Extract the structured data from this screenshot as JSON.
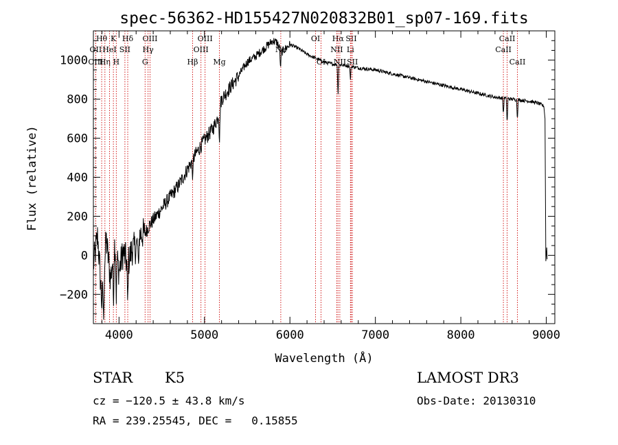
{
  "chart_data": {
    "type": "line",
    "title": "spec-56362-HD155427N020832B01_sp07-169.fits",
    "xlabel": "Wavelength (Å)",
    "ylabel": "Flux (relative)",
    "xlim": [
      3700,
      9100
    ],
    "ylim": [
      -350,
      1150
    ],
    "x_ticks": [
      4000,
      5000,
      6000,
      7000,
      8000,
      9000
    ],
    "x_tick_labels": [
      "4000",
      "5000",
      "6000",
      "7000",
      "8000",
      "9000"
    ],
    "y_ticks": [
      -200,
      0,
      200,
      400,
      600,
      800,
      1000
    ],
    "y_tick_labels": [
      "−200",
      "0",
      "200",
      "400",
      "600",
      "800",
      "1000"
    ],
    "series": [
      {
        "name": "flux",
        "anchors": [
          [
            3700,
            -50
          ],
          [
            3750,
            100
          ],
          [
            3800,
            -250
          ],
          [
            3850,
            80
          ],
          [
            3900,
            -120
          ],
          [
            3950,
            60
          ],
          [
            4000,
            -80
          ],
          [
            4050,
            20
          ],
          [
            4100,
            -50
          ],
          [
            4150,
            30
          ],
          [
            4200,
            40
          ],
          [
            4250,
            110
          ],
          [
            4300,
            110
          ],
          [
            4350,
            150
          ],
          [
            4400,
            180
          ],
          [
            4500,
            240
          ],
          [
            4600,
            300
          ],
          [
            4700,
            360
          ],
          [
            4800,
            440
          ],
          [
            4900,
            520
          ],
          [
            5000,
            590
          ],
          [
            5100,
            650
          ],
          [
            5150,
            700
          ],
          [
            5200,
            800
          ],
          [
            5300,
            860
          ],
          [
            5400,
            920
          ],
          [
            5500,
            990
          ],
          [
            5600,
            1020
          ],
          [
            5700,
            1060
          ],
          [
            5800,
            1100
          ],
          [
            5850,
            1090
          ],
          [
            5900,
            1040
          ],
          [
            6000,
            1080
          ],
          [
            6100,
            1060
          ],
          [
            6200,
            1030
          ],
          [
            6300,
            1010
          ],
          [
            6400,
            990
          ],
          [
            6500,
            980
          ],
          [
            6600,
            975
          ],
          [
            6700,
            970
          ],
          [
            6800,
            960
          ],
          [
            7000,
            950
          ],
          [
            7200,
            930
          ],
          [
            7400,
            910
          ],
          [
            7600,
            890
          ],
          [
            7800,
            870
          ],
          [
            8000,
            850
          ],
          [
            8200,
            830
          ],
          [
            8400,
            810
          ],
          [
            8600,
            800
          ],
          [
            8800,
            790
          ],
          [
            8900,
            780
          ],
          [
            8970,
            765
          ]
        ],
        "absorption": [
          [
            3820,
            -330
          ],
          [
            3935,
            -280
          ],
          [
            3968,
            -250
          ],
          [
            4101,
            -250
          ],
          [
            4227,
            -60
          ],
          [
            4861,
            380
          ],
          [
            5175,
            560
          ],
          [
            5890,
            950
          ],
          [
            6563,
            810
          ],
          [
            6708,
            900
          ],
          [
            8498,
            720
          ],
          [
            8542,
            670
          ],
          [
            8662,
            690
          ],
          [
            9000,
            -30
          ],
          [
            9030,
            0
          ]
        ]
      }
    ],
    "spectral_lines": [
      {
        "label": "Hθ",
        "wavelength": 3797,
        "row": 1
      },
      {
        "label": "OII",
        "wavelength": 3727,
        "row": 2
      },
      {
        "label": "OIII",
        "wavelength": 3727,
        "row": 3
      },
      {
        "label": "Hη",
        "wavelength": 3835,
        "row": 3
      },
      {
        "label": "K",
        "wavelength": 3934,
        "row": 1
      },
      {
        "label": "HeI",
        "wavelength": 3889,
        "row": 2
      },
      {
        "label": "H",
        "wavelength": 3968,
        "row": 3
      },
      {
        "label": "Hδ",
        "wavelength": 4102,
        "row": 1
      },
      {
        "label": "SII",
        "wavelength": 4069,
        "row": 2
      },
      {
        "label": "OIII",
        "wavelength": 4363,
        "row": 1
      },
      {
        "label": "Hγ",
        "wavelength": 4340,
        "row": 2
      },
      {
        "label": "G",
        "wavelength": 4305,
        "row": 3
      },
      {
        "label": "Hβ",
        "wavelength": 4861,
        "row": 3
      },
      {
        "label": "OIII",
        "wavelength": 5007,
        "row": 1
      },
      {
        "label": "OIII",
        "wavelength": 4959,
        "row": 2
      },
      {
        "label": "Mg",
        "wavelength": 5175,
        "row": 3
      },
      {
        "label": "Na",
        "wavelength": 5893,
        "row": 2
      },
      {
        "label": "OI",
        "wavelength": 6300,
        "row": 1
      },
      {
        "label": "OI",
        "wavelength": 6364,
        "row": 3
      },
      {
        "label": "Hα",
        "wavelength": 6563,
        "row": 1
      },
      {
        "label": "SII",
        "wavelength": 6717,
        "row": 1
      },
      {
        "label": "NII",
        "wavelength": 6548,
        "row": 2
      },
      {
        "label": "Li",
        "wavelength": 6708,
        "row": 2
      },
      {
        "label": "NII",
        "wavelength": 6584,
        "row": 3
      },
      {
        "label": "SII",
        "wavelength": 6731,
        "row": 3
      },
      {
        "label": "CaII",
        "wavelength": 8542,
        "row": 1
      },
      {
        "label": "CaII",
        "wavelength": 8498,
        "row": 2
      },
      {
        "label": "CaII",
        "wavelength": 8662,
        "row": 3
      }
    ]
  },
  "info": {
    "class_label": "STAR",
    "subclass": "K5",
    "survey": "LAMOST DR3",
    "cz": "cz = −120.5 ± 43.8 km/s",
    "obs_date": "Obs-Date: 20130310",
    "coords": "RA = 239.25545, DEC =   0.15855"
  }
}
